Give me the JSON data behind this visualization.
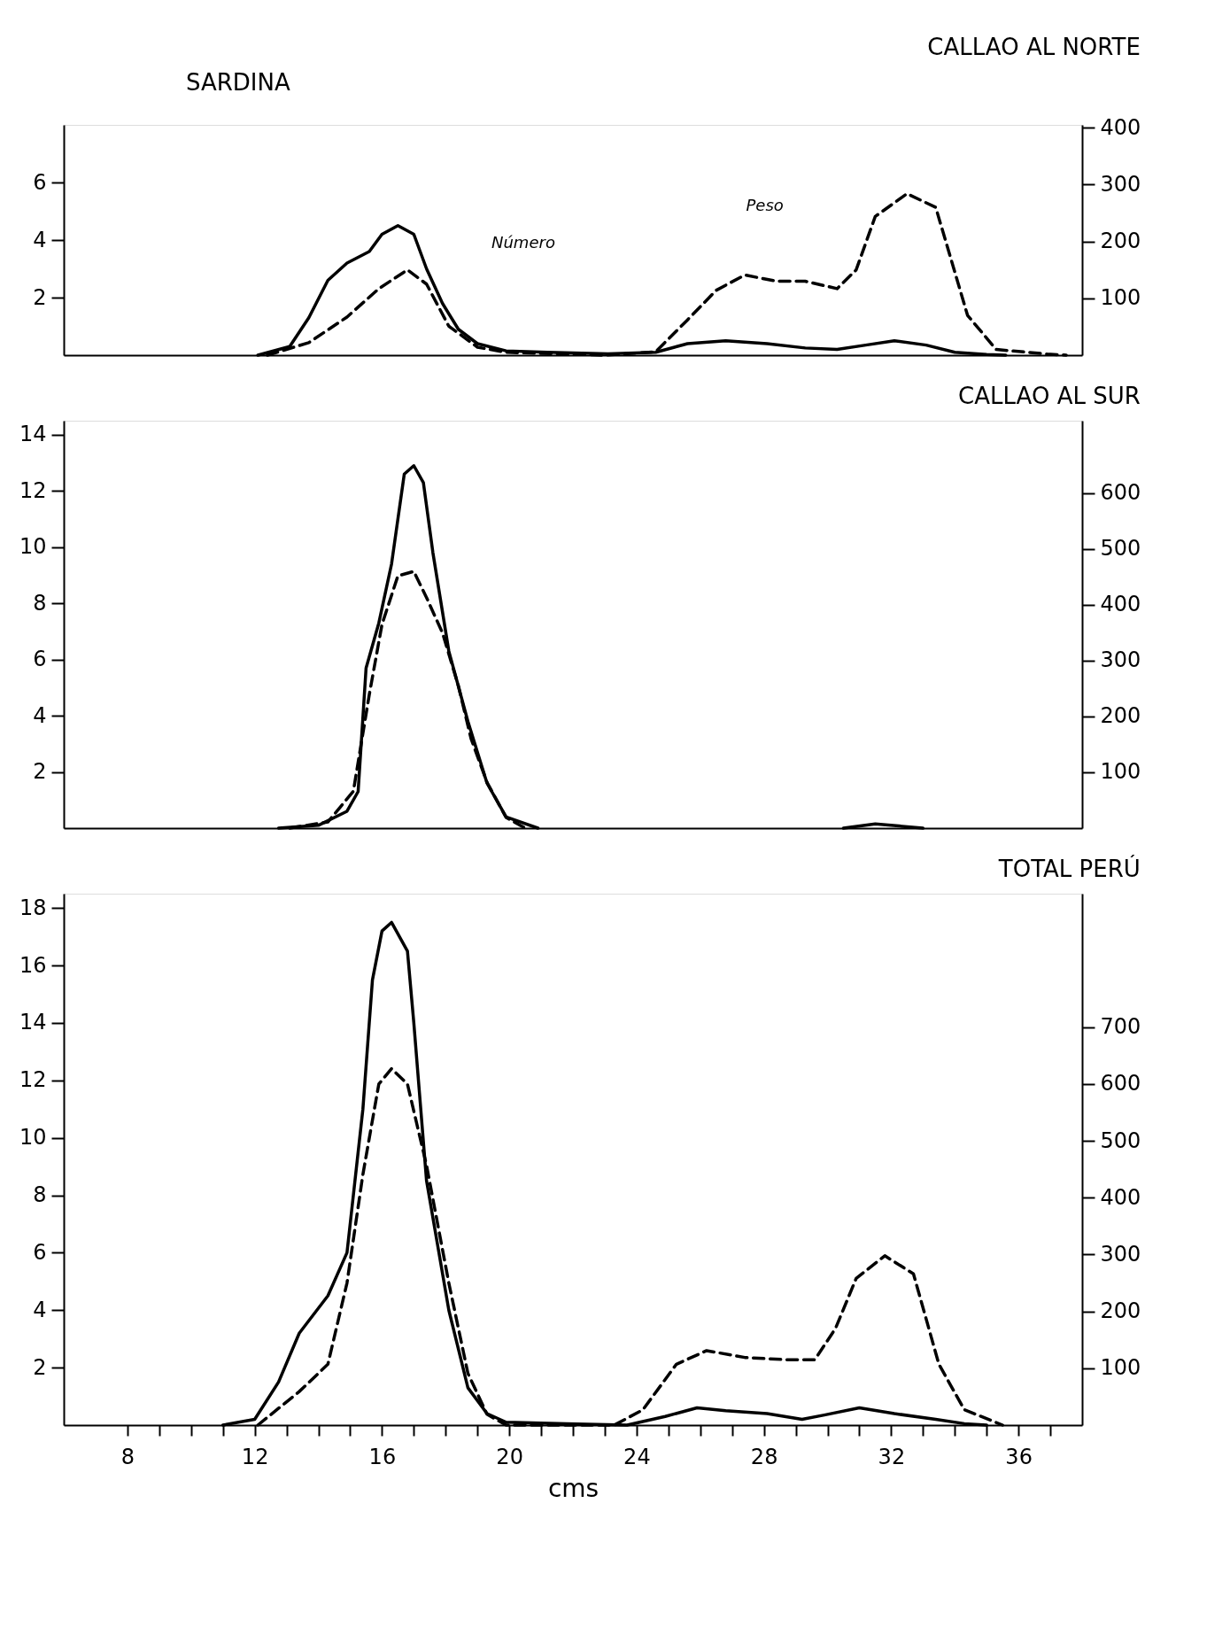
{
  "chart_data": [
    {
      "type": "line",
      "title": "CALLAO AL NORTE",
      "annotations": [
        "SARDINA",
        "Número",
        "Peso"
      ],
      "xlim": [
        6,
        38
      ],
      "ylim": [
        0,
        8
      ],
      "yticks": [
        2,
        4,
        6
      ],
      "y2lim": [
        0,
        405
      ],
      "y2ticks": [
        100,
        200,
        300,
        400
      ],
      "tick_labels": "y",
      "grid": false,
      "series": [
        {
          "color": "#000000",
          "line_style": "solid",
          "x": [
            12.1,
            13.1,
            13.7,
            14.3,
            14.9,
            15.6,
            16.0,
            16.5,
            17.0,
            17.4,
            17.9,
            18.4,
            19.0,
            19.9,
            21.2,
            23.1,
            24.6,
            25.6,
            26.8,
            28.1,
            29.3,
            30.3,
            31.2,
            32.1,
            33.1,
            34.0,
            35.0,
            35.6
          ],
          "values": [
            0,
            0.3,
            1.3,
            2.6,
            3.2,
            3.6,
            4.2,
            4.5,
            4.2,
            3.0,
            1.8,
            0.9,
            0.4,
            0.15,
            0.1,
            0.05,
            0.1,
            0.4,
            0.5,
            0.4,
            0.25,
            0.2,
            0.35,
            0.5,
            0.35,
            0.1,
            0.02,
            0
          ]
        },
        {
          "axis": "y2",
          "color": "#000000",
          "line_style": "dashed",
          "x": [
            12.4,
            13.7,
            14.9,
            15.9,
            16.8,
            17.4,
            18.1,
            19.0,
            19.9,
            23.0,
            24.6,
            25.6,
            26.5,
            27.4,
            28.4,
            29.3,
            30.3,
            30.9,
            31.5,
            32.5,
            33.4,
            34.4,
            35.3,
            36.9,
            37.5
          ],
          "values": [
            0,
            22,
            67,
            117,
            150,
            125,
            51,
            14,
            5,
            0,
            6,
            62,
            114,
            141,
            130,
            130,
            117,
            150,
            244,
            284,
            260,
            70,
            10,
            2,
            0
          ]
        }
      ]
    },
    {
      "type": "line",
      "title": "CALLAO AL SUR",
      "xlim": [
        6,
        38
      ],
      "ylim": [
        0,
        14.5
      ],
      "yticks": [
        2,
        4,
        6,
        8,
        10,
        12,
        14
      ],
      "y2lim": [
        0,
        730
      ],
      "y2ticks": [
        100,
        200,
        300,
        400,
        500,
        600
      ],
      "tick_labels": "y",
      "grid": false,
      "series": [
        {
          "color": "#000000",
          "line_style": "solid",
          "x": [
            12.75,
            14.0,
            14.9,
            15.25,
            15.5,
            15.9,
            16.3,
            16.7,
            17.0,
            17.3,
            17.6,
            18.1,
            18.7,
            19.3,
            19.9,
            20.9
          ],
          "values": [
            0,
            0.1,
            0.6,
            1.3,
            5.7,
            7.3,
            9.4,
            12.6,
            12.9,
            12.3,
            9.8,
            6.3,
            3.8,
            1.6,
            0.4,
            0
          ]
        },
        {
          "color": "#000000",
          "line_style": "solid",
          "x": [
            30.5,
            31.5,
            33.0
          ],
          "values": [
            0,
            0.15,
            0
          ]
        },
        {
          "axis": "y2",
          "color": "#000000",
          "line_style": "dashed",
          "x": [
            13.1,
            14.3,
            15.1,
            15.6,
            16.0,
            16.5,
            17.0,
            17.4,
            17.9,
            18.4,
            18.8,
            19.3,
            19.9,
            20.5
          ],
          "values": [
            0,
            11,
            66,
            239,
            365,
            452,
            460,
            413,
            350,
            255,
            160,
            82,
            19,
            0
          ]
        }
      ]
    },
    {
      "type": "line",
      "title": "TOTAL PERÚ",
      "xlabel": "cms",
      "xlim": [
        6,
        38
      ],
      "xticks": [
        8,
        {
          "value": 9,
          "label": null
        },
        {
          "value": 10,
          "label": null
        },
        {
          "value": 11,
          "label": null
        },
        12,
        {
          "value": 13,
          "label": null
        },
        {
          "value": 14,
          "label": null
        },
        {
          "value": 15,
          "label": null
        },
        16,
        {
          "value": 17,
          "label": null
        },
        {
          "value": 18,
          "label": null
        },
        {
          "value": 19,
          "label": null
        },
        20,
        {
          "value": 21,
          "label": null
        },
        {
          "value": 22,
          "label": null
        },
        {
          "value": 23,
          "label": null
        },
        24,
        {
          "value": 25,
          "label": null
        },
        {
          "value": 26,
          "label": null
        },
        {
          "value": 27,
          "label": null
        },
        28,
        {
          "value": 29,
          "label": null
        },
        {
          "value": 30,
          "label": null
        },
        {
          "value": 31,
          "label": null
        },
        32,
        {
          "value": 33,
          "label": null
        },
        {
          "value": 34,
          "label": null
        },
        {
          "value": 35,
          "label": null
        },
        36,
        {
          "value": 37,
          "label": null
        }
      ],
      "ylim": [
        0,
        18.5
      ],
      "yticks": [
        2,
        4,
        6,
        8,
        10,
        12,
        14,
        16,
        18
      ],
      "y2lim": [
        0,
        935
      ],
      "y2ticks": [
        100,
        200,
        300,
        400,
        500,
        600,
        700
      ],
      "grid": false,
      "series": [
        {
          "color": "#000000",
          "line_style": "solid",
          "x": [
            11.0,
            12.0,
            12.75,
            13.4,
            14.3,
            14.9,
            15.4,
            15.7,
            16.0,
            16.3,
            16.8,
            17.0,
            17.4,
            18.1,
            18.7,
            19.3,
            19.9,
            21.8,
            23.7,
            24.9,
            25.9,
            26.8,
            28.1,
            29.2,
            29.9,
            31.0,
            32.1,
            33.4,
            34.3,
            35.0
          ],
          "values": [
            0,
            0.2,
            1.5,
            3.2,
            4.5,
            6,
            11,
            15.5,
            17.2,
            17.5,
            16.5,
            14,
            8.5,
            4,
            1.3,
            0.4,
            0.1,
            0.05,
            0,
            0.3,
            0.6,
            0.5,
            0.4,
            0.2,
            0.35,
            0.6,
            0.4,
            0.2,
            0.05,
            0
          ]
        },
        {
          "axis": "y2",
          "color": "#000000",
          "line_style": "dashed",
          "x": [
            12.1,
            13.4,
            14.3,
            14.9,
            15.4,
            15.9,
            16.3,
            16.8,
            17.4,
            18.1,
            18.7,
            19.3,
            19.9,
            23.3,
            24.2,
            25.25,
            26.2,
            27.4,
            28.7,
            29.6,
            30.25,
            30.9,
            31.8,
            32.7,
            33.5,
            34.3,
            35.5
          ],
          "values": [
            0,
            59,
            107,
            250,
            441,
            600,
            627,
            600,
            457,
            250,
            91,
            19,
            0,
            0,
            27,
            107,
            131,
            119,
            115,
            115,
            170,
            258,
            298,
            266,
            107,
            27,
            0
          ]
        }
      ]
    }
  ]
}
